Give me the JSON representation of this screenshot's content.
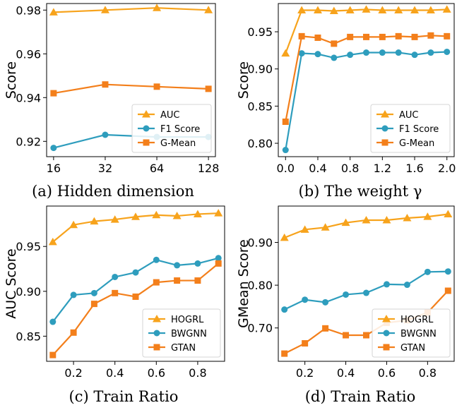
{
  "colors": {
    "orange": "#F7A31C",
    "teal": "#2E9DBD",
    "dark_orange": "#F37F1B",
    "axis": "#000000"
  },
  "chart_data": [
    {
      "type": "line",
      "caption": "(a) Hidden dimension",
      "ylabel": "Score",
      "x_scale": "log2",
      "xticks": [
        16,
        32,
        64,
        128
      ],
      "xtick_labels": [
        "16",
        "32",
        "64",
        "128"
      ],
      "xlim": [
        16,
        128
      ],
      "yticks": [
        0.92,
        0.94,
        0.96,
        0.98
      ],
      "ytick_labels": [
        "0.92",
        "0.94",
        "0.96",
        "0.98"
      ],
      "ylim": [
        0.913,
        0.983
      ],
      "x": [
        16,
        32,
        64,
        128
      ],
      "legend": "lower-right",
      "series": [
        {
          "name": "AUC",
          "color": "#F7A31C",
          "marker": "triangle",
          "values": [
            0.979,
            0.98,
            0.981,
            0.98
          ]
        },
        {
          "name": "F1 Score",
          "color": "#2E9DBD",
          "marker": "circle",
          "values": [
            0.917,
            0.923,
            0.922,
            0.922
          ]
        },
        {
          "name": "G-Mean",
          "color": "#F37F1B",
          "marker": "square",
          "values": [
            0.942,
            0.946,
            0.945,
            0.944
          ]
        }
      ]
    },
    {
      "type": "line",
      "caption": "(b) The weight γ",
      "ylabel": "Score",
      "xticks": [
        0.0,
        0.4,
        0.8,
        1.2,
        1.6,
        2.0
      ],
      "xtick_labels": [
        "0.0",
        "0.4",
        "0.8",
        "1.2",
        "1.6",
        "2.0"
      ],
      "xlim": [
        0,
        2
      ],
      "yticks": [
        0.8,
        0.85,
        0.9,
        0.95
      ],
      "ytick_labels": [
        "0.80",
        "0.85",
        "0.90",
        "0.95"
      ],
      "ylim": [
        0.782,
        0.988
      ],
      "x": [
        0.0,
        0.2,
        0.4,
        0.6,
        0.8,
        1.0,
        1.2,
        1.4,
        1.6,
        1.8,
        2.0
      ],
      "legend": "lower-right",
      "series": [
        {
          "name": "AUC",
          "color": "#F7A31C",
          "marker": "triangle",
          "values": [
            0.921,
            0.979,
            0.979,
            0.978,
            0.979,
            0.98,
            0.979,
            0.979,
            0.979,
            0.979,
            0.98
          ]
        },
        {
          "name": "F1 Score",
          "color": "#2E9DBD",
          "marker": "circle",
          "values": [
            0.791,
            0.921,
            0.92,
            0.915,
            0.919,
            0.922,
            0.922,
            0.922,
            0.919,
            0.922,
            0.923
          ]
        },
        {
          "name": "G-Mean",
          "color": "#F37F1B",
          "marker": "square",
          "values": [
            0.829,
            0.944,
            0.942,
            0.934,
            0.943,
            0.943,
            0.943,
            0.944,
            0.943,
            0.945,
            0.944
          ]
        }
      ]
    },
    {
      "type": "line",
      "caption": "(c) Train Ratio",
      "ylabel": "AUC Score",
      "xticks": [
        0.2,
        0.4,
        0.6,
        0.8
      ],
      "xtick_labels": [
        "0.2",
        "0.4",
        "0.6",
        "0.8"
      ],
      "xlim": [
        0.07,
        0.93
      ],
      "yticks": [
        0.85,
        0.9,
        0.95
      ],
      "ytick_labels": [
        "0.85",
        "0.90",
        "0.95"
      ],
      "ylim": [
        0.822,
        0.995
      ],
      "x": [
        0.1,
        0.2,
        0.3,
        0.4,
        0.5,
        0.6,
        0.7,
        0.8,
        0.9
      ],
      "legend": "lower-right",
      "series": [
        {
          "name": "HOGRL",
          "color": "#F7A31C",
          "marker": "triangle",
          "values": [
            0.955,
            0.974,
            0.978,
            0.98,
            0.983,
            0.985,
            0.984,
            0.986,
            0.987
          ]
        },
        {
          "name": "BWGNN",
          "color": "#2E9DBD",
          "marker": "circle",
          "values": [
            0.866,
            0.896,
            0.898,
            0.916,
            0.921,
            0.935,
            0.929,
            0.931,
            0.937
          ]
        },
        {
          "name": "GTAN",
          "color": "#F37F1B",
          "marker": "square",
          "values": [
            0.829,
            0.854,
            0.886,
            0.898,
            0.894,
            0.91,
            0.912,
            0.912,
            0.931
          ]
        }
      ]
    },
    {
      "type": "line",
      "caption": "(d) Train Ratio",
      "ylabel": "GMean Score",
      "xticks": [
        0.2,
        0.4,
        0.6,
        0.8
      ],
      "xtick_labels": [
        "0.2",
        "0.4",
        "0.6",
        "0.8"
      ],
      "xlim": [
        0.07,
        0.93
      ],
      "yticks": [
        0.7,
        0.8,
        0.9
      ],
      "ytick_labels": [
        "0.70",
        "0.80",
        "0.90"
      ],
      "ylim": [
        0.622,
        0.985
      ],
      "x": [
        0.1,
        0.2,
        0.3,
        0.4,
        0.5,
        0.6,
        0.7,
        0.8,
        0.9
      ],
      "legend": "lower-right",
      "series": [
        {
          "name": "HOGRL",
          "color": "#F7A31C",
          "marker": "triangle",
          "values": [
            0.911,
            0.93,
            0.935,
            0.946,
            0.952,
            0.952,
            0.957,
            0.96,
            0.966
          ]
        },
        {
          "name": "BWGNN",
          "color": "#2E9DBD",
          "marker": "circle",
          "values": [
            0.743,
            0.766,
            0.76,
            0.778,
            0.782,
            0.802,
            0.801,
            0.831,
            0.832
          ]
        },
        {
          "name": "GTAN",
          "color": "#F37F1B",
          "marker": "square",
          "values": [
            0.64,
            0.664,
            0.699,
            0.683,
            0.683,
            0.712,
            0.718,
            0.736,
            0.787
          ]
        }
      ]
    }
  ]
}
